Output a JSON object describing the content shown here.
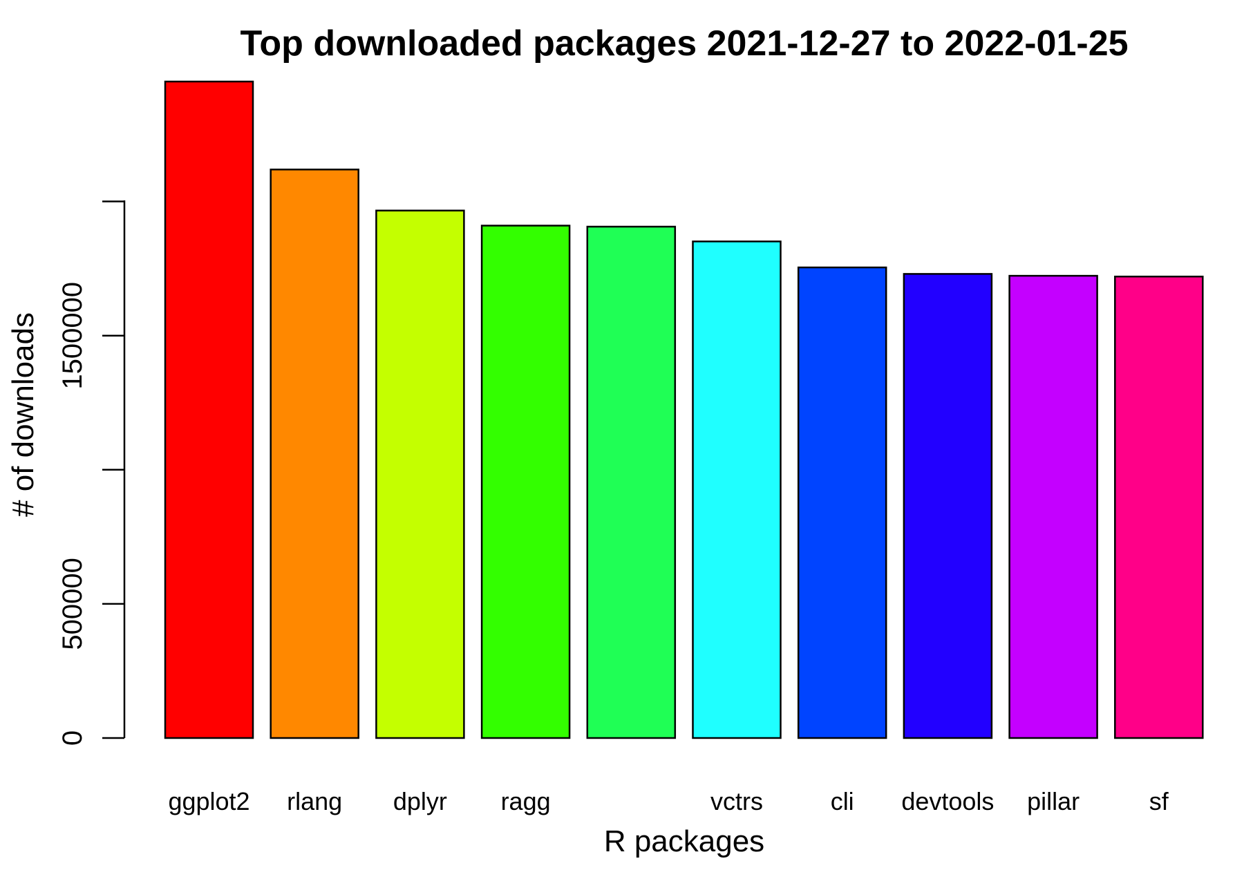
{
  "chart_data": {
    "type": "bar",
    "title": "Top downloaded packages 2021-12-27 to 2022-01-25",
    "xlabel": "R packages",
    "ylabel": "# of downloads",
    "categories": [
      "ggplot2",
      "rlang",
      "dplyr",
      "ragg",
      "",
      "vctrs",
      "cli",
      "devtools",
      "pillar",
      "sf"
    ],
    "values": [
      2447000,
      2119000,
      1966000,
      1910000,
      1906000,
      1851000,
      1754000,
      1730000,
      1723000,
      1720000
    ],
    "colors": [
      "#FF0000",
      "#FF8800",
      "#C4FF00",
      "#33FF00",
      "#1FFF55",
      "#1FFFFF",
      "#0044FF",
      "#2200FF",
      "#C400FF",
      "#FF0088"
    ],
    "ylim": [
      0,
      2447000
    ],
    "yticks": [
      0,
      500000,
      1000000,
      1500000,
      2000000
    ],
    "ytick_labels": [
      "0",
      "500000",
      "",
      "1500000",
      ""
    ],
    "grid": false,
    "legend": "none"
  }
}
